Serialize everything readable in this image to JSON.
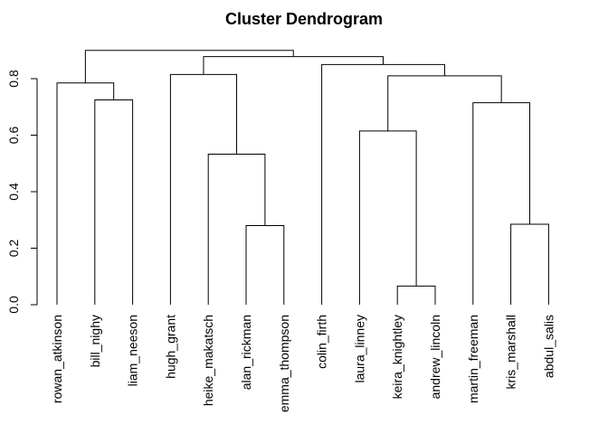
{
  "chart_data": {
    "type": "dendrogram",
    "title": "Cluster Dendrogram",
    "ylim": [
      0,
      0.9
    ],
    "yticks": [
      0.0,
      0.2,
      0.4,
      0.6,
      0.8
    ],
    "ytick_labels": [
      "0.0",
      "0.2",
      "0.4",
      "0.6",
      "0.8"
    ],
    "leaves": [
      "rowan_atkinson",
      "bill_nighy",
      "liam_neeson",
      "hugh_grant",
      "heike_makatsch",
      "alan_rickman",
      "emma_thompson",
      "colin_firth",
      "laura_linney",
      "keira_knightley",
      "andrew_lincoln",
      "martin_freeman",
      "kris_marshall",
      "abdul_salis"
    ],
    "merges": [
      {
        "left": "andrew_lincoln",
        "right": "keira_knightley",
        "height": 0.066
      },
      {
        "left": "alan_rickman",
        "right": "emma_thompson",
        "height": 0.28
      },
      {
        "left": "kris_marshall",
        "right": "abdul_salis",
        "height": 0.285
      },
      {
        "left": "heike_makatsch",
        "right": "(alan_rickman, emma_thompson)",
        "height": 0.533
      },
      {
        "left": "laura_linney",
        "right": "(keira_knightley, andrew_lincoln)",
        "height": 0.615
      },
      {
        "left": "martin_freeman",
        "right": "(kris_marshall, abdul_salis)",
        "height": 0.715
      },
      {
        "left": "bill_nighy",
        "right": "liam_neeson",
        "height": 0.725
      },
      {
        "left": "rowan_atkinson",
        "right": "(bill_nighy, liam_neeson)",
        "height": 0.785
      },
      {
        "left": "(laura_linney … andrew_lincoln)",
        "right": "(martin_freeman … abdul_salis)",
        "height": 0.81
      },
      {
        "left": "hugh_grant",
        "right": "(heike_makatsch … emma_thompson)",
        "height": 0.815
      },
      {
        "left": "colin_firth",
        "right": "(laura_linney … abdul_salis)",
        "height": 0.85
      },
      {
        "left": "(hugh_grant … emma_thompson)",
        "right": "(colin_firth … abdul_salis)",
        "height": 0.878
      },
      {
        "left": "(rowan_atkinson … liam_neeson)",
        "right": "(hugh_grant … abdul_salis)",
        "height": 0.9
      }
    ],
    "tree": {
      "height": 0.9,
      "children": [
        {
          "height": 0.785,
          "children": [
            {
              "leaf": "rowan_atkinson"
            },
            {
              "height": 0.725,
              "children": [
                {
                  "leaf": "bill_nighy"
                },
                {
                  "leaf": "liam_neeson"
                }
              ]
            }
          ]
        },
        {
          "height": 0.878,
          "children": [
            {
              "height": 0.815,
              "children": [
                {
                  "leaf": "hugh_grant"
                },
                {
                  "height": 0.533,
                  "children": [
                    {
                      "leaf": "heike_makatsch"
                    },
                    {
                      "height": 0.28,
                      "children": [
                        {
                          "leaf": "alan_rickman"
                        },
                        {
                          "leaf": "emma_thompson"
                        }
                      ]
                    }
                  ]
                }
              ]
            },
            {
              "height": 0.85,
              "children": [
                {
                  "leaf": "colin_firth"
                },
                {
                  "height": 0.81,
                  "children": [
                    {
                      "height": 0.615,
                      "children": [
                        {
                          "leaf": "laura_linney"
                        },
                        {
                          "height": 0.066,
                          "children": [
                            {
                              "leaf": "keira_knightley"
                            },
                            {
                              "leaf": "andrew_lincoln"
                            }
                          ]
                        }
                      ]
                    },
                    {
                      "height": 0.715,
                      "children": [
                        {
                          "leaf": "martin_freeman"
                        },
                        {
                          "height": 0.285,
                          "children": [
                            {
                              "leaf": "kris_marshall"
                            },
                            {
                              "leaf": "abdul_salis"
                            }
                          ]
                        }
                      ]
                    }
                  ]
                }
              ]
            }
          ]
        }
      ]
    },
    "grid": false,
    "legend": "none"
  }
}
